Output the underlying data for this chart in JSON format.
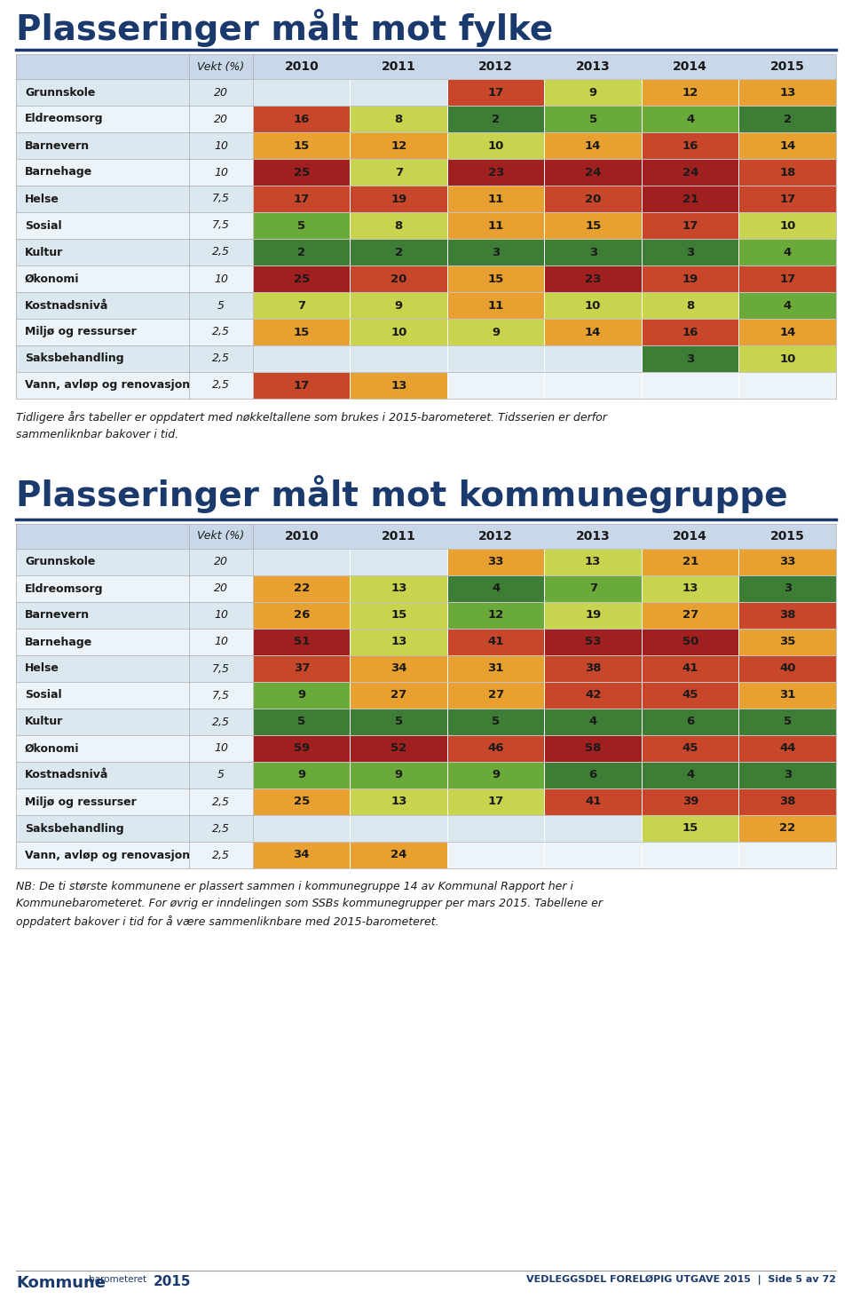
{
  "title1": "Plasseringer målt mot fylke",
  "title2": "Plasseringer målt mot kommunegruppe",
  "footer_text1": "Tidligere års tabeller er oppdatert med nøkkeltallene som brukes i 2015-barometeret. Tidsserien er derfor\nsammenliknbar bakover i tid.",
  "footer_text2": "NB: De ti største kommunene er plassert sammen i kommunegruppe 14 av Kommunal Rapport her i\nKommunebarometeret. For øvrig er inndelingen som SSBs kommunegrupper per mars 2015. Tabellene er\noppdatert bakover i tid for å være sammenliknbare med 2015-barometeret.",
  "years": [
    "2010",
    "2011",
    "2012",
    "2013",
    "2014",
    "2015"
  ],
  "table1": {
    "rows": [
      {
        "name": "Grunnskole",
        "vekt": "20",
        "vals": [
          null,
          null,
          17,
          9,
          12,
          13
        ]
      },
      {
        "name": "Eldreomsorg",
        "vekt": "20",
        "vals": [
          16,
          8,
          2,
          5,
          4,
          2
        ]
      },
      {
        "name": "Barnevern",
        "vekt": "10",
        "vals": [
          15,
          12,
          10,
          14,
          16,
          14
        ]
      },
      {
        "name": "Barnehage",
        "vekt": "10",
        "vals": [
          25,
          7,
          23,
          24,
          24,
          18
        ]
      },
      {
        "name": "Helse",
        "vekt": "7,5",
        "vals": [
          17,
          19,
          11,
          20,
          21,
          17
        ]
      },
      {
        "name": "Sosial",
        "vekt": "7,5",
        "vals": [
          5,
          8,
          11,
          15,
          17,
          10
        ]
      },
      {
        "name": "Kultur",
        "vekt": "2,5",
        "vals": [
          2,
          2,
          3,
          3,
          3,
          4
        ]
      },
      {
        "name": "Økonomi",
        "vekt": "10",
        "vals": [
          25,
          20,
          15,
          23,
          19,
          17
        ]
      },
      {
        "name": "Kostnadsnivå",
        "vekt": "5",
        "vals": [
          7,
          9,
          11,
          10,
          8,
          4
        ]
      },
      {
        "name": "Miljø og ressurser",
        "vekt": "2,5",
        "vals": [
          15,
          10,
          9,
          14,
          16,
          14
        ]
      },
      {
        "name": "Saksbehandling",
        "vekt": "2,5",
        "vals": [
          null,
          null,
          null,
          null,
          3,
          10
        ]
      },
      {
        "name": "Vann, avløp og renovasjon",
        "vekt": "2,5",
        "vals": [
          17,
          13,
          null,
          null,
          null,
          null
        ]
      }
    ]
  },
  "table2": {
    "rows": [
      {
        "name": "Grunnskole",
        "vekt": "20",
        "vals": [
          null,
          null,
          33,
          13,
          21,
          33
        ]
      },
      {
        "name": "Eldreomsorg",
        "vekt": "20",
        "vals": [
          22,
          13,
          4,
          7,
          13,
          3
        ]
      },
      {
        "name": "Barnevern",
        "vekt": "10",
        "vals": [
          26,
          15,
          12,
          19,
          27,
          38
        ]
      },
      {
        "name": "Barnehage",
        "vekt": "10",
        "vals": [
          51,
          13,
          41,
          53,
          50,
          35
        ]
      },
      {
        "name": "Helse",
        "vekt": "7,5",
        "vals": [
          37,
          34,
          31,
          38,
          41,
          40
        ]
      },
      {
        "name": "Sosial",
        "vekt": "7,5",
        "vals": [
          9,
          27,
          27,
          42,
          45,
          31
        ]
      },
      {
        "name": "Kultur",
        "vekt": "2,5",
        "vals": [
          5,
          5,
          5,
          4,
          6,
          5
        ]
      },
      {
        "name": "Økonomi",
        "vekt": "10",
        "vals": [
          59,
          52,
          46,
          58,
          45,
          44
        ]
      },
      {
        "name": "Kostnadsnivå",
        "vekt": "5",
        "vals": [
          9,
          9,
          9,
          6,
          4,
          3
        ]
      },
      {
        "name": "Miljø og ressurser",
        "vekt": "2,5",
        "vals": [
          25,
          13,
          17,
          41,
          39,
          38
        ]
      },
      {
        "name": "Saksbehandling",
        "vekt": "2,5",
        "vals": [
          null,
          null,
          null,
          null,
          15,
          22
        ]
      },
      {
        "name": "Vann, avløp og renovasjon",
        "vekt": "2,5",
        "vals": [
          34,
          24,
          null,
          null,
          null,
          null
        ]
      }
    ]
  },
  "row_bg_even": "#dce8f0",
  "row_bg_odd": "#edf4f9",
  "header_bg": "#c8d8e8",
  "empty_cell_even": "#dce8f0",
  "empty_cell_odd": "#edf4f9",
  "title_color": "#1a3a6e",
  "text_dark": "#1a1a1a",
  "rule_color": "#1a3a6e",
  "footer_color": "#555555"
}
